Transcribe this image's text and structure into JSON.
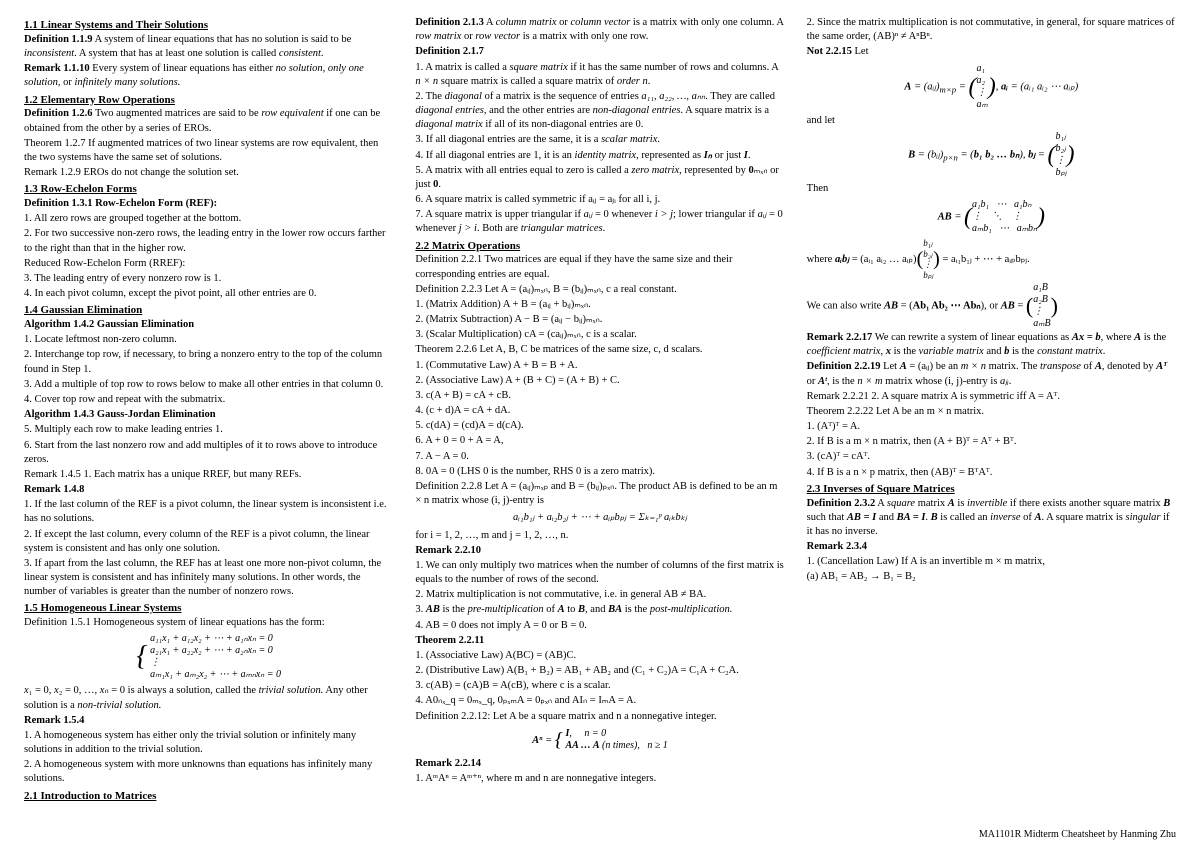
{
  "footer": "MA1101R Midterm Cheatsheet by Hanming Zhu",
  "col1": {
    "s11_h": "1.1 Linear Systems and Their Solutions",
    "s11_p1": "Definition 1.1.9 A system of linear equations that has no solution is said to be inconsistent. A system that has at least one solution is called consistent.",
    "s11_p2": "Remark 1.1.10 Every system of linear equations has either no solution, only one solution, or infinitely many solutions.",
    "s12_h": "1.2 Elementary Row Operations",
    "s12_p1": "Definition 1.2.6 Two augmented matrices are said to be row equivalent if one can be obtained from the other by a series of EROs.",
    "s12_p2": "Theorem 1.2.7 If augmented matrices of two linear systems are row equivalent, then the two systems have the same set of solutions.",
    "s12_p3": "Remark 1.2.9 EROs do not change the solution set.",
    "s13_h": "1.3 Row-Echelon Forms",
    "s13_p1": "Definition 1.3.1 Row-Echelon Form (REF):",
    "s13_l1": "1. All zero rows are grouped together at the bottom.",
    "s13_l2": "2. For two successive non-zero rows, the leading entry in the lower row occurs farther to the right than that in the higher row.",
    "s13_p2": "Reduced Row-Echelon Form (RREF):",
    "s13_l3": "3. The leading entry of every nonzero row is 1.",
    "s13_l4": "4. In each pivot column, except the pivot point, all other entries are 0.",
    "s14_h": "1.4 Gaussian Elimination",
    "s14_a1": "Algorithm 1.4.2 Gaussian Elimination",
    "s14_l1": "1. Locate leftmost non-zero column.",
    "s14_l2": "2. Interchange top row, if necessary, to bring a nonzero entry to the top of the column found in Step 1.",
    "s14_l3": "3. Add a multiple of top row to rows below to make all other entries in that column 0.",
    "s14_l4": "4. Cover top row and repeat with the submatrix.",
    "s14_a2": "Algorithm 1.4.3 Gauss-Jordan Elimination",
    "s14_l5": "5. Multiply each row to make leading entries 1.",
    "s14_l6": "6. Start from the last nonzero row and add multiples of it to rows above to introduce zeros.",
    "s14_r1": "Remark 1.4.5 1. Each matrix has a unique RREF, but many REFs.",
    "s14_r2": "Remark 1.4.8",
    "s14_r2l1": "1. If the last column of the REF is a pivot column, the linear system is inconsistent i.e. has no solutions.",
    "s14_r2l2": "2. If except the last column, every column of the REF is a pivot column, the linear system is consistent and has only one solution.",
    "s14_r2l3": "3. If apart from the last column, the REF has at least one more non-pivot column, the linear system is consistent and has infinitely many solutions. In other words, the number of variables is greater than the number of nonzero rows.",
    "s15_h": "1.5 Homogeneous Linear Systems",
    "s15_p1": "Definition 1.5.1 Homogeneous system of linear equations has the form:",
    "s15_eq1": "a₁₁x₁ + a₁₂x₂ + ⋯ + a₁ₙxₙ = 0",
    "s15_eq2": "a₂₁x₁ + a₂₂x₂ + ⋯ + a₂ₙxₙ = 0",
    "s15_eq3": "⋮",
    "s15_eq4": "aₘ₁x₁ + aₘ₂x₂ + ⋯ + aₘₙxₙ = 0",
    "s15_p2": "x₁ = 0, x₂ = 0, …, xₙ = 0 is always a solution, called the trivial solution. Any other solution is a non-trivial solution.",
    "s15_r": "Remark 1.5.4"
  },
  "col2": {
    "p1": "1. A homogeneous system has either only the trivial solution or infinitely many solutions in addition to the trivial solution.",
    "p2": "2. A homogeneous system with more unknowns than equations has infinitely many solutions.",
    "s21_h": "2.1 Introduction to Matrices",
    "s21_d1": "Definition 2.1.3 A column matrix or column vector is a matrix with only one column. A row matrix or row vector is a matrix with only one row.",
    "s21_d2": "Definition 2.1.7",
    "s21_l1": "1. A matrix is called a square matrix if it has the same number of rows and columns. A n × n square matrix is called a square matrix of order n.",
    "s21_l2": "2. The diagonal of a matrix is the sequence of entries a₁₁, a₂₂, …, aₙₙ. They are called diagonal entries, and the other entries are non-diagonal entries. A square matrix is a diagonal matrix if all of its non-diagonal entries are 0.",
    "s21_l3": "3. If all diagonal entries are the same, it is a scalar matrix.",
    "s21_l4": "4. If all diagonal entries are 1, it is an identity matrix, represented as Iₙ or just I.",
    "s21_l5": "5. A matrix with all entries equal to zero is called a zero matrix, represented by 0ₘₓₙ or just 0.",
    "s21_l6": "6. A square matrix is called symmetric if aᵢⱼ = aⱼᵢ for all i, j.",
    "s21_l7": "7. A square matrix is upper triangular if aᵢⱼ = 0 whenever i > j; lower triangular if aᵢⱼ = 0 whenever j > i. Both are triangular matrices.",
    "s22_h": "2.2 Matrix Operations",
    "s22_d1": "Definition 2.2.1 Two matrices are equal if they have the same size and their corresponding entries are equal.",
    "s22_d3": "Definition 2.2.3 Let A = (aᵢⱼ)ₘₓₙ, B = (bᵢⱼ)ₘₓₙ, c a real constant.",
    "s22_l1": "1. (Matrix Addition) A + B = (aᵢⱼ + bᵢⱼ)ₘₓₙ.",
    "s22_l2": "2. (Matrix Subtraction) A − B = (aᵢⱼ − bᵢⱼ)ₘₓₙ.",
    "s22_l3": "3. (Scalar Multiplication) cA = (caᵢⱼ)ₘₓₙ, c is a scalar.",
    "s22_t": "Theorem 2.2.6 Let A, B, C be matrices of the same size, c, d scalars.",
    "s22_tl1": "1. (Commutative Law) A + B = B + A.",
    "s22_tl2": "2. (Associative Law) A + (B + C) = (A + B) + C.",
    "s22_tl3": "3. c(A + B) = cA + cB.",
    "s22_tl4": "4. (c + d)A = cA + dA.",
    "s22_tl5": "5. c(dA) = (cd)A = d(cA).",
    "s22_tl6": "6. A + 0 = 0 + A = A,",
    "s22_tl7": "7. A − A = 0.",
    "s22_tl8": "8. 0A = 0 (LHS 0 is the number, RHS 0 is a zero matrix).",
    "s22_d8": "Definition 2.2.8 Let A = (aᵢⱼ)ₘₓₚ and B = (bᵢⱼ)ₚₓₙ. The product AB is defined to be an m × n matrix whose (i, j)-entry is",
    "s22_eq": "aᵢ₁b₁ⱼ + aᵢ₂b₂ⱼ + ⋯ + aᵢₚbₚⱼ = Σₖ₌₁ᵖ aᵢₖbₖⱼ",
    "s22_eq2": "for i = 1, 2, …, m and j = 1, 2, …, n.",
    "s22_r10": "Remark 2.2.10",
    "s22_r10l1": "1. We can only multiply two matrices when the number of columns of the first matrix is equals to the number of rows of the second.",
    "s22_r10l2": "2. Matrix multiplication is not commutative, i.e. in general AB ≠ BA.",
    "s22_r10l3": "3. AB is the pre-multiplication of A to B, and BA is the post-multiplication."
  },
  "col3": {
    "p1": "4. AB = 0 does not imply A = 0 or B = 0.",
    "t11": "Theorem 2.2.11",
    "t11_l1": "1. (Associative Law) A(BC) = (AB)C.",
    "t11_l2": "2. (Distributive Law) A(B₁ + B₂) = AB₁ + AB₂ and (C₁ + C₂)A = C₁A + C₂A.",
    "t11_l3": "3. c(AB) = (cA)B = A(cB), where c is a scalar.",
    "t11_l4": "4. A0ₙₓ_q = 0ₘₓ_q, 0ₚₓₘA = 0ₚₓₙ and AIₙ = IₘA = A.",
    "d12": "Definition 2.2.12: Let A be a square matrix and n a nonnegative integer.",
    "d12_eq": "Aⁿ = { I,  n = 0;  AA … A (n times),  n ≥ 1",
    "r14": "Remark 2.2.14",
    "r14_l1": "1. AᵐAⁿ = Aᵐ⁺ⁿ, where m and n are nonnegative integers.",
    "r14_l2": "2. Since the matrix multiplication is not commutative, in general, for square matrices of the same order, (AB)ⁿ ≠ AⁿBⁿ.",
    "n15": "Not 2.2.15 Let",
    "n15_eq1": "A = (aᵢⱼ)ₘₓₚ = (a₁ a₂ ⋮ aₘ), aᵢ = (aᵢ₁ aᵢ₂ ⋯ aᵢₚ)",
    "n15_p2": "and let",
    "n15_eq2": "B = (bᵢⱼ)ₚₓₙ = (b₁ b₂ … bₙ), bⱼ = (b₁ⱼ b₂ⱼ ⋮ bₚⱼ)",
    "n15_p3": "Then",
    "n15_eq3": "AB = (a₁b₁ ⋯ a₁bₙ; ⋮ ⋱ ⋮; aₘb₁ ⋯ aₘbₙ)",
    "n15_p4": "where aᵢbⱼ = (aᵢ₁ aᵢ₂ … aᵢₚ)(b₁ⱼ b₂ⱼ ⋮ bₚⱼ) = aᵢ₁b₁ⱼ + ⋯ + aᵢₚbₚⱼ.",
    "n15_p5": "We can also write AB = (Ab₁ Ab₂ ⋯ Abₙ), or AB = (a₁B a₂B ⋮ aₘB)",
    "r17": "Remark 2.2.17 We can rewrite a system of linear equations as Ax = b, where A is the coefficient matrix, x is the variable matrix and b is the constant matrix.",
    "d19": "Definition 2.2.19 Let A = (aᵢⱼ) be an m × n matrix. The transpose of A, denoted by Aᵀ or Aᵗ, is the n × m matrix whose (i, j)-entry is aⱼᵢ.",
    "r21": "Remark 2.2.21 2. A square matrix A is symmetric iff A = Aᵀ.",
    "t22": "Theorem 2.2.22 Let A be an m × n matrix.",
    "t22_l1": "1. (Aᵀ)ᵀ = A.",
    "t22_l2": "2. If B is a m × n matrix, then (A + B)ᵀ = Aᵀ + Bᵀ.",
    "t22_l3": "3. (cA)ᵀ = cAᵀ.",
    "t22_l4": "4. If B is a n × p matrix, then (AB)ᵀ = BᵀAᵀ.",
    "s23_h": "2.3 Inverses of Square Matrices",
    "d32": "Definition 2.3.2 A square matrix A is invertible if there exists another square matrix B such that AB = I and BA = I. B is called an inverse of A. A square matrix is singular if it has no inverse.",
    "r34": "Remark 2.3.4",
    "r34_l1": "1. (Cancellation Law) If A is an invertible m × m matrix,",
    "r34_l2": "(a) AB₁ = AB₂ → B₁ = B₂"
  }
}
